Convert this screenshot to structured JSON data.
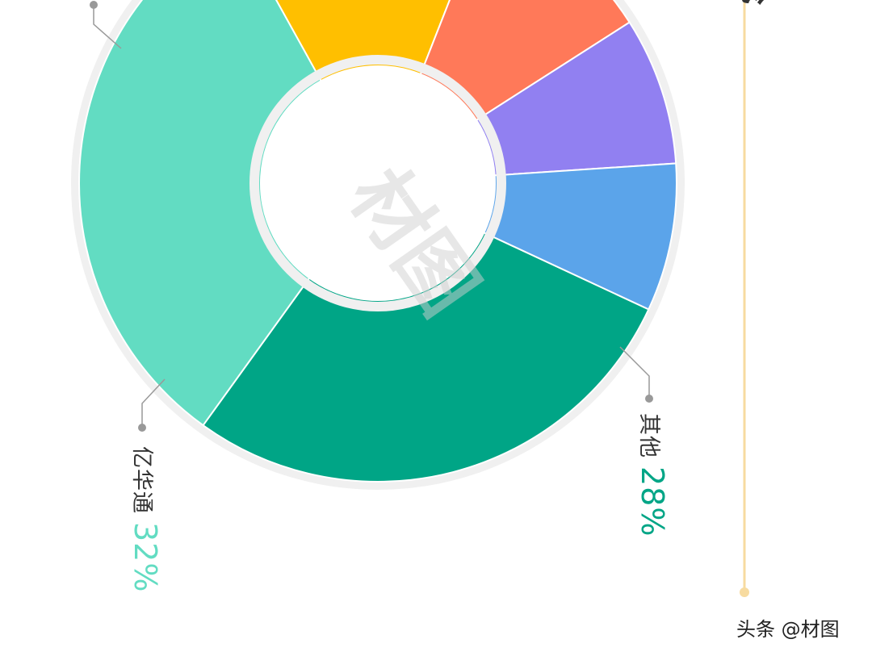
{
  "chart_data": {
    "type": "pie",
    "donut": true,
    "orientation": "rotated 90deg clockwise",
    "slices": [
      {
        "label": "其他",
        "value": 28,
        "value_label": "28%",
        "color": "#00a586"
      },
      {
        "label": "亿华通",
        "value": 32,
        "value_label": "32%",
        "color": "#62dcc2"
      },
      {
        "label": "",
        "value": 14,
        "value_label": "",
        "color": "#ffbf00"
      },
      {
        "label": "",
        "value": 10,
        "value_label": "",
        "color": "#ff7959"
      },
      {
        "label": "",
        "value": 8,
        "value_label": "",
        "color": "#9180f1"
      },
      {
        "label": "",
        "value": 8,
        "value_label": "",
        "color": "#5ba4ea"
      }
    ],
    "title": "",
    "legend": "none"
  },
  "colors": {
    "ring_border": "#f0f0f0",
    "leader_line": "#999999",
    "timeline": "#f7dba0",
    "label_text": "#333333"
  },
  "watermark": "材图",
  "footer": "头条 @材图"
}
